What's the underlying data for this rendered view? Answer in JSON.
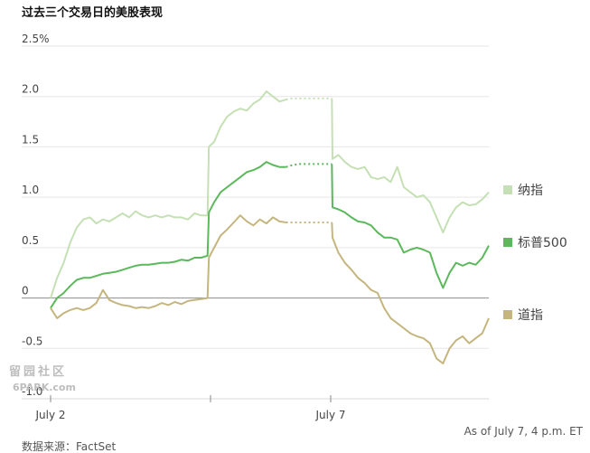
{
  "chart_data": {
    "type": "line",
    "title": "过去三个交易日的美股表现",
    "y_ticks": [
      "2.5%",
      "2.0",
      "1.5",
      "1.0",
      "0.5",
      "0",
      "-0.5",
      "-1.0"
    ],
    "x_ticks": [
      "July 2",
      "July 7"
    ],
    "ylim": [
      -1.0,
      2.5
    ],
    "grid": true,
    "legend_placement": "right",
    "series": [
      {
        "name": "纳指",
        "color": "#c5e0b4",
        "points": [
          [
            0,
            0
          ],
          [
            0.5,
            0.1
          ],
          [
            1,
            0.2
          ],
          [
            2,
            0.35
          ],
          [
            3,
            0.55
          ],
          [
            4,
            0.7
          ],
          [
            5,
            0.78
          ],
          [
            6,
            0.8
          ],
          [
            7,
            0.74
          ],
          [
            8,
            0.78
          ],
          [
            9,
            0.76
          ],
          [
            10,
            0.8
          ],
          [
            11,
            0.84
          ],
          [
            12,
            0.8
          ],
          [
            13,
            0.86
          ],
          [
            14,
            0.82
          ],
          [
            15,
            0.8
          ],
          [
            16,
            0.82
          ],
          [
            17,
            0.8
          ],
          [
            18,
            0.82
          ],
          [
            19,
            0.8
          ],
          [
            20,
            0.8
          ],
          [
            21,
            0.78
          ],
          [
            22,
            0.84
          ],
          [
            23,
            0.82
          ],
          [
            24,
            0.82
          ],
          [
            24.2,
            1.5
          ],
          [
            25,
            1.55
          ],
          [
            26,
            1.7
          ],
          [
            27,
            1.8
          ],
          [
            28,
            1.85
          ],
          [
            29,
            1.88
          ],
          [
            30,
            1.86
          ],
          [
            31,
            1.93
          ],
          [
            32,
            1.97
          ],
          [
            33,
            2.05
          ],
          [
            34,
            2.0
          ],
          [
            35,
            1.95
          ],
          [
            36,
            1.97
          ],
          [
            37,
            1.98
          ],
          [
            38,
            1.98
          ],
          [
            39,
            1.98
          ],
          [
            40,
            1.98
          ],
          [
            41,
            1.98
          ],
          [
            42,
            1.98
          ],
          [
            43,
            1.98
          ],
          [
            43.1,
            1.38
          ],
          [
            44,
            1.42
          ],
          [
            45,
            1.35
          ],
          [
            46,
            1.3
          ],
          [
            47,
            1.28
          ],
          [
            48,
            1.3
          ],
          [
            49,
            1.2
          ],
          [
            50,
            1.18
          ],
          [
            51,
            1.2
          ],
          [
            52,
            1.15
          ],
          [
            53,
            1.3
          ],
          [
            54,
            1.1
          ],
          [
            55,
            1.05
          ],
          [
            56,
            1.0
          ],
          [
            57,
            1.02
          ],
          [
            58,
            0.95
          ],
          [
            59,
            0.8
          ],
          [
            60,
            0.65
          ],
          [
            61,
            0.8
          ],
          [
            62,
            0.9
          ],
          [
            63,
            0.95
          ],
          [
            64,
            0.92
          ],
          [
            65,
            0.93
          ],
          [
            66,
            0.98
          ],
          [
            67,
            1.05
          ]
        ]
      },
      {
        "name": "标普500",
        "color": "#5cb85c",
        "points": [
          [
            0,
            -0.1
          ],
          [
            1,
            0.0
          ],
          [
            2,
            0.05
          ],
          [
            3,
            0.12
          ],
          [
            4,
            0.18
          ],
          [
            5,
            0.2
          ],
          [
            6,
            0.2
          ],
          [
            7,
            0.22
          ],
          [
            8,
            0.24
          ],
          [
            9,
            0.25
          ],
          [
            10,
            0.26
          ],
          [
            11,
            0.28
          ],
          [
            12,
            0.3
          ],
          [
            13,
            0.32
          ],
          [
            14,
            0.33
          ],
          [
            15,
            0.33
          ],
          [
            16,
            0.34
          ],
          [
            17,
            0.35
          ],
          [
            18,
            0.35
          ],
          [
            19,
            0.36
          ],
          [
            20,
            0.38
          ],
          [
            21,
            0.37
          ],
          [
            22,
            0.4
          ],
          [
            23,
            0.4
          ],
          [
            24,
            0.42
          ],
          [
            24.2,
            0.85
          ],
          [
            25,
            0.95
          ],
          [
            26,
            1.05
          ],
          [
            27,
            1.1
          ],
          [
            28,
            1.15
          ],
          [
            29,
            1.2
          ],
          [
            30,
            1.25
          ],
          [
            31,
            1.27
          ],
          [
            32,
            1.3
          ],
          [
            33,
            1.35
          ],
          [
            34,
            1.32
          ],
          [
            35,
            1.3
          ],
          [
            36,
            1.3
          ],
          [
            37,
            1.32
          ],
          [
            38,
            1.33
          ],
          [
            39,
            1.33
          ],
          [
            40,
            1.33
          ],
          [
            41,
            1.33
          ],
          [
            42,
            1.33
          ],
          [
            43,
            1.33
          ],
          [
            43.1,
            0.9
          ],
          [
            44,
            0.88
          ],
          [
            45,
            0.85
          ],
          [
            46,
            0.8
          ],
          [
            47,
            0.76
          ],
          [
            48,
            0.75
          ],
          [
            49,
            0.72
          ],
          [
            50,
            0.65
          ],
          [
            51,
            0.6
          ],
          [
            52,
            0.6
          ],
          [
            53,
            0.58
          ],
          [
            54,
            0.45
          ],
          [
            55,
            0.48
          ],
          [
            56,
            0.5
          ],
          [
            57,
            0.48
          ],
          [
            58,
            0.45
          ],
          [
            59,
            0.25
          ],
          [
            60,
            0.1
          ],
          [
            61,
            0.25
          ],
          [
            62,
            0.35
          ],
          [
            63,
            0.32
          ],
          [
            64,
            0.35
          ],
          [
            65,
            0.33
          ],
          [
            66,
            0.4
          ],
          [
            67,
            0.52
          ]
        ]
      },
      {
        "name": "道指",
        "color": "#c5b57f",
        "points": [
          [
            0,
            -0.1
          ],
          [
            1,
            -0.2
          ],
          [
            2,
            -0.15
          ],
          [
            3,
            -0.12
          ],
          [
            4,
            -0.1
          ],
          [
            5,
            -0.12
          ],
          [
            6,
            -0.1
          ],
          [
            7,
            -0.05
          ],
          [
            8,
            0.08
          ],
          [
            9,
            -0.02
          ],
          [
            10,
            -0.05
          ],
          [
            11,
            -0.07
          ],
          [
            12,
            -0.08
          ],
          [
            13,
            -0.1
          ],
          [
            14,
            -0.09
          ],
          [
            15,
            -0.1
          ],
          [
            16,
            -0.08
          ],
          [
            17,
            -0.05
          ],
          [
            18,
            -0.07
          ],
          [
            19,
            -0.04
          ],
          [
            20,
            -0.06
          ],
          [
            21,
            -0.03
          ],
          [
            22,
            -0.02
          ],
          [
            23,
            -0.01
          ],
          [
            24,
            0.0
          ],
          [
            24.2,
            0.4
          ],
          [
            25,
            0.5
          ],
          [
            26,
            0.62
          ],
          [
            27,
            0.68
          ],
          [
            28,
            0.75
          ],
          [
            29,
            0.82
          ],
          [
            30,
            0.76
          ],
          [
            31,
            0.72
          ],
          [
            32,
            0.78
          ],
          [
            33,
            0.74
          ],
          [
            34,
            0.8
          ],
          [
            35,
            0.76
          ],
          [
            36,
            0.75
          ],
          [
            37,
            0.75
          ],
          [
            38,
            0.75
          ],
          [
            39,
            0.75
          ],
          [
            40,
            0.75
          ],
          [
            41,
            0.75
          ],
          [
            42,
            0.75
          ],
          [
            43,
            0.75
          ],
          [
            43.1,
            0.6
          ],
          [
            44,
            0.45
          ],
          [
            45,
            0.35
          ],
          [
            46,
            0.28
          ],
          [
            47,
            0.2
          ],
          [
            48,
            0.15
          ],
          [
            49,
            0.08
          ],
          [
            50,
            0.05
          ],
          [
            51,
            -0.1
          ],
          [
            52,
            -0.2
          ],
          [
            53,
            -0.25
          ],
          [
            54,
            -0.3
          ],
          [
            55,
            -0.35
          ],
          [
            56,
            -0.38
          ],
          [
            57,
            -0.4
          ],
          [
            58,
            -0.45
          ],
          [
            59,
            -0.6
          ],
          [
            60,
            -0.65
          ],
          [
            61,
            -0.5
          ],
          [
            62,
            -0.42
          ],
          [
            63,
            -0.38
          ],
          [
            64,
            -0.45
          ],
          [
            65,
            -0.4
          ],
          [
            66,
            -0.35
          ],
          [
            67,
            -0.2
          ]
        ]
      }
    ],
    "footnote": "As of July 7, 4 p.m. ET",
    "source": "数据来源：FactSet"
  },
  "watermark": {
    "cn": "留园社区",
    "en": "6PARK.com"
  }
}
